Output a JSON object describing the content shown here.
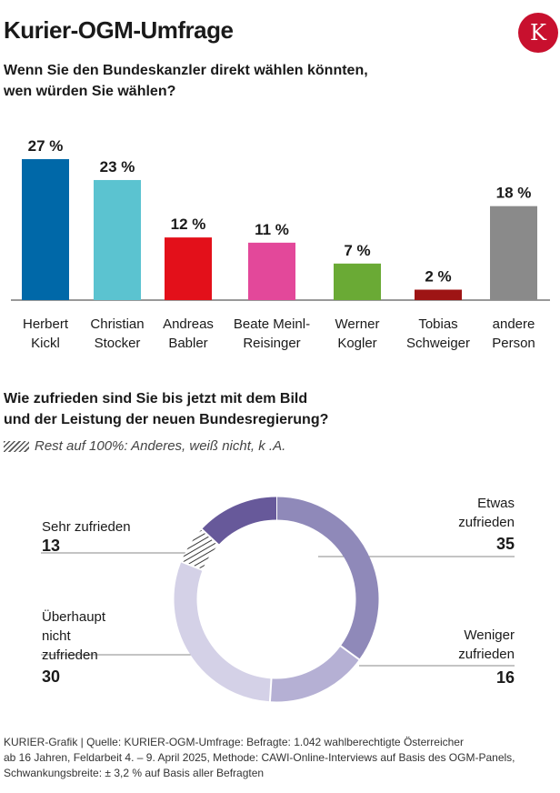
{
  "header": {
    "title": "Kurier-OGM-Umfrage",
    "logo_letter": "K"
  },
  "question1": "Wenn Sie den Bundeskanzler direkt wählen könnten,\nwen würden Sie wählen?",
  "question2": "Wie zufrieden sind Sie bis jetzt mit dem Bild\nund der Leistung der neuen Bundesregierung?",
  "note": "Rest auf 100%: Anderes, weiß nicht, k .A.",
  "footer": "KURIER-Grafik | Quelle: KURIER-OGM-Umfrage: Befragte: 1.042 wahlberechtigte Österreicher\nab 16 Jahren, Feldarbeit 4. – 9. April 2025,  Methode: CAWI-Online-Interviews auf Basis des OGM-Panels,\nSchwankungsbreite: ± 3,2 % auf Basis aller Befragten",
  "chart_data": [
    {
      "type": "bar",
      "categories": [
        [
          "Herbert",
          "Kickl"
        ],
        [
          "Christian",
          "Stocker"
        ],
        [
          "Andreas",
          "Babler"
        ],
        [
          "Beate Meinl-",
          "Reisinger"
        ],
        [
          "Werner",
          "Kogler"
        ],
        [
          "Tobias",
          "Schweiger"
        ],
        [
          "andere",
          "Person"
        ]
      ],
      "values": [
        27,
        23,
        12,
        11,
        7,
        2,
        18
      ],
      "value_labels": [
        "27 %",
        "23 %",
        "12 %",
        "11 %",
        "7 %",
        "2 %",
        "18 %"
      ],
      "colors": [
        "#0068a8",
        "#5bc3d0",
        "#e3101a",
        "#e3489a",
        "#6aaa35",
        "#9e1414",
        "#8a8a8a"
      ],
      "ylim": [
        0,
        27
      ]
    },
    {
      "type": "pie",
      "style": "donut",
      "slices": [
        {
          "label_lines": [
            "Etwas",
            "zufrieden"
          ],
          "value": 35,
          "value_label": "35",
          "color": "#8f89b9"
        },
        {
          "label_lines": [
            "Weniger",
            "zufrieden"
          ],
          "value": 16,
          "value_label": "16",
          "color": "#b5b0d4"
        },
        {
          "label_lines": [
            "Überhaupt",
            "nicht",
            "zufrieden"
          ],
          "value": 30,
          "value_label": "30",
          "color": "#d4d1e7"
        },
        {
          "label_lines": [],
          "value": 6,
          "value_label": "",
          "color": "hatch"
        },
        {
          "label_lines": [
            "Sehr zufrieden"
          ],
          "value": 13,
          "value_label": "13",
          "color": "#67599a"
        }
      ]
    }
  ]
}
